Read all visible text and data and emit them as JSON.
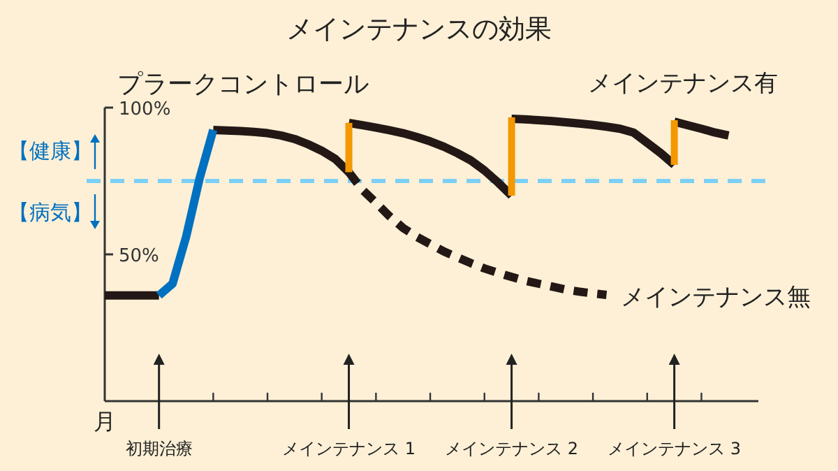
{
  "chart_data": {
    "type": "line",
    "title": "メインテナンスの効果",
    "xlabel": "月",
    "categories": [
      null,
      null,
      null,
      null,
      "初期治療",
      null,
      null,
      null,
      null,
      null,
      null,
      null,
      null,
      null,
      null,
      null,
      null,
      null,
      "メインテナンス 1",
      null,
      null,
      null,
      null,
      null,
      null,
      null,
      null,
      null,
      null,
      null,
      "メインテナンス 2",
      null,
      null,
      null,
      null,
      null,
      null,
      null,
      null,
      null,
      null,
      null,
      "メインテナンス 3",
      null,
      null,
      null,
      null,
      null
    ],
    "ylim": [
      0,
      100
    ],
    "yticks": [
      {
        "value": 50,
        "label": "50%"
      },
      {
        "value": 100,
        "label": "100%"
      }
    ],
    "grid": false,
    "marker": "none",
    "ref_lines": [
      {
        "axis": "y",
        "value": 75,
        "color": "#7ccff5",
        "line_style": "dashed"
      }
    ],
    "annotations": [
      "プラークコントロール",
      "【健康】",
      "【病気】"
    ],
    "series": [
      {
        "name": "メインテナンス有",
        "color": "#231815",
        "line_style": "solid",
        "values": [
          36,
          36,
          36,
          36,
          36,
          null,
          null,
          null,
          92.4,
          92.2,
          92,
          91.7,
          91.3,
          90.5,
          89.3,
          87.5,
          85.3,
          82.5,
          78,
          null,
          null,
          null,
          null,
          null,
          null,
          null,
          null,
          null,
          null,
          null,
          null,
          null,
          null,
          null,
          null,
          null,
          null,
          null,
          null,
          null,
          null,
          null,
          null,
          null,
          null,
          null,
          null,
          null
        ]
      },
      {
        "color": "#231815",
        "line_style": "solid",
        "values": [
          null,
          null,
          null,
          null,
          null,
          null,
          null,
          null,
          null,
          null,
          null,
          null,
          null,
          null,
          null,
          null,
          null,
          null,
          94.8,
          94,
          93.2,
          92.3,
          91.3,
          90,
          88.5,
          86.7,
          84.5,
          82,
          78.6,
          74.5,
          70,
          null,
          null,
          null,
          null,
          null,
          null,
          null,
          null,
          null,
          null,
          null,
          null,
          null,
          null,
          null,
          null,
          null
        ]
      },
      {
        "color": "#231815",
        "line_style": "solid",
        "values": [
          null,
          null,
          null,
          null,
          null,
          null,
          null,
          null,
          null,
          null,
          null,
          null,
          null,
          null,
          null,
          null,
          null,
          null,
          null,
          null,
          null,
          null,
          null,
          null,
          null,
          null,
          null,
          null,
          null,
          null,
          96.2,
          96,
          95.7,
          95.4,
          95,
          94.6,
          94.1,
          93.5,
          92.8,
          91.5,
          88,
          84.5,
          80.5,
          null,
          null,
          null,
          null,
          null
        ]
      },
      {
        "color": "#231815",
        "line_style": "solid",
        "values": [
          null,
          null,
          null,
          null,
          null,
          null,
          null,
          null,
          null,
          null,
          null,
          null,
          null,
          null,
          null,
          null,
          null,
          null,
          null,
          null,
          null,
          null,
          null,
          null,
          null,
          null,
          null,
          null,
          null,
          null,
          null,
          null,
          null,
          null,
          null,
          null,
          null,
          null,
          null,
          null,
          null,
          null,
          95.2,
          94,
          92.8,
          91.5,
          90.5,
          null
        ]
      },
      {
        "color": "#0070c0",
        "line_style": "solid",
        "values": [
          null,
          null,
          null,
          null,
          36,
          40,
          56,
          76,
          92.4,
          null,
          null,
          null,
          null,
          null,
          null,
          null,
          null,
          null,
          null,
          null,
          null,
          null,
          null,
          null,
          null,
          null,
          null,
          null,
          null,
          null,
          null,
          null,
          null,
          null,
          null,
          null,
          null,
          null,
          null,
          null,
          null,
          null,
          null,
          null,
          null,
          null,
          null,
          null
        ]
      },
      {
        "name": "メインテナンス無",
        "color": "#231815",
        "line_style": "dashed",
        "values": [
          null,
          null,
          null,
          null,
          null,
          null,
          null,
          null,
          null,
          null,
          null,
          null,
          null,
          null,
          null,
          null,
          null,
          null,
          78,
          72,
          67.6,
          63,
          59,
          56,
          53.5,
          51,
          49,
          47,
          45.2,
          43.7,
          42.3,
          41,
          40,
          39,
          38,
          37.3,
          36.7,
          36.2,
          null,
          null,
          null,
          null,
          null,
          null,
          null,
          null,
          null,
          null
        ]
      },
      {
        "type": "bar",
        "color": "#f39800",
        "values": [
          null,
          null,
          null,
          null,
          null,
          null,
          null,
          null,
          null,
          null,
          null,
          null,
          null,
          null,
          null,
          null,
          null,
          null,
          16.8,
          null,
          null,
          null,
          null,
          null,
          null,
          null,
          null,
          null,
          null,
          null,
          26.7,
          null,
          null,
          null,
          null,
          null,
          null,
          null,
          null,
          null,
          null,
          null,
          15.2,
          null,
          null,
          null,
          null,
          null
        ],
        "base": [
          null,
          null,
          null,
          null,
          null,
          null,
          null,
          null,
          null,
          null,
          null,
          null,
          null,
          null,
          null,
          null,
          null,
          null,
          78,
          null,
          null,
          null,
          null,
          null,
          null,
          null,
          null,
          null,
          null,
          null,
          70,
          null,
          null,
          null,
          null,
          null,
          null,
          null,
          null,
          null,
          null,
          null,
          80.5,
          null,
          null,
          null,
          null,
          null
        ]
      }
    ]
  }
}
